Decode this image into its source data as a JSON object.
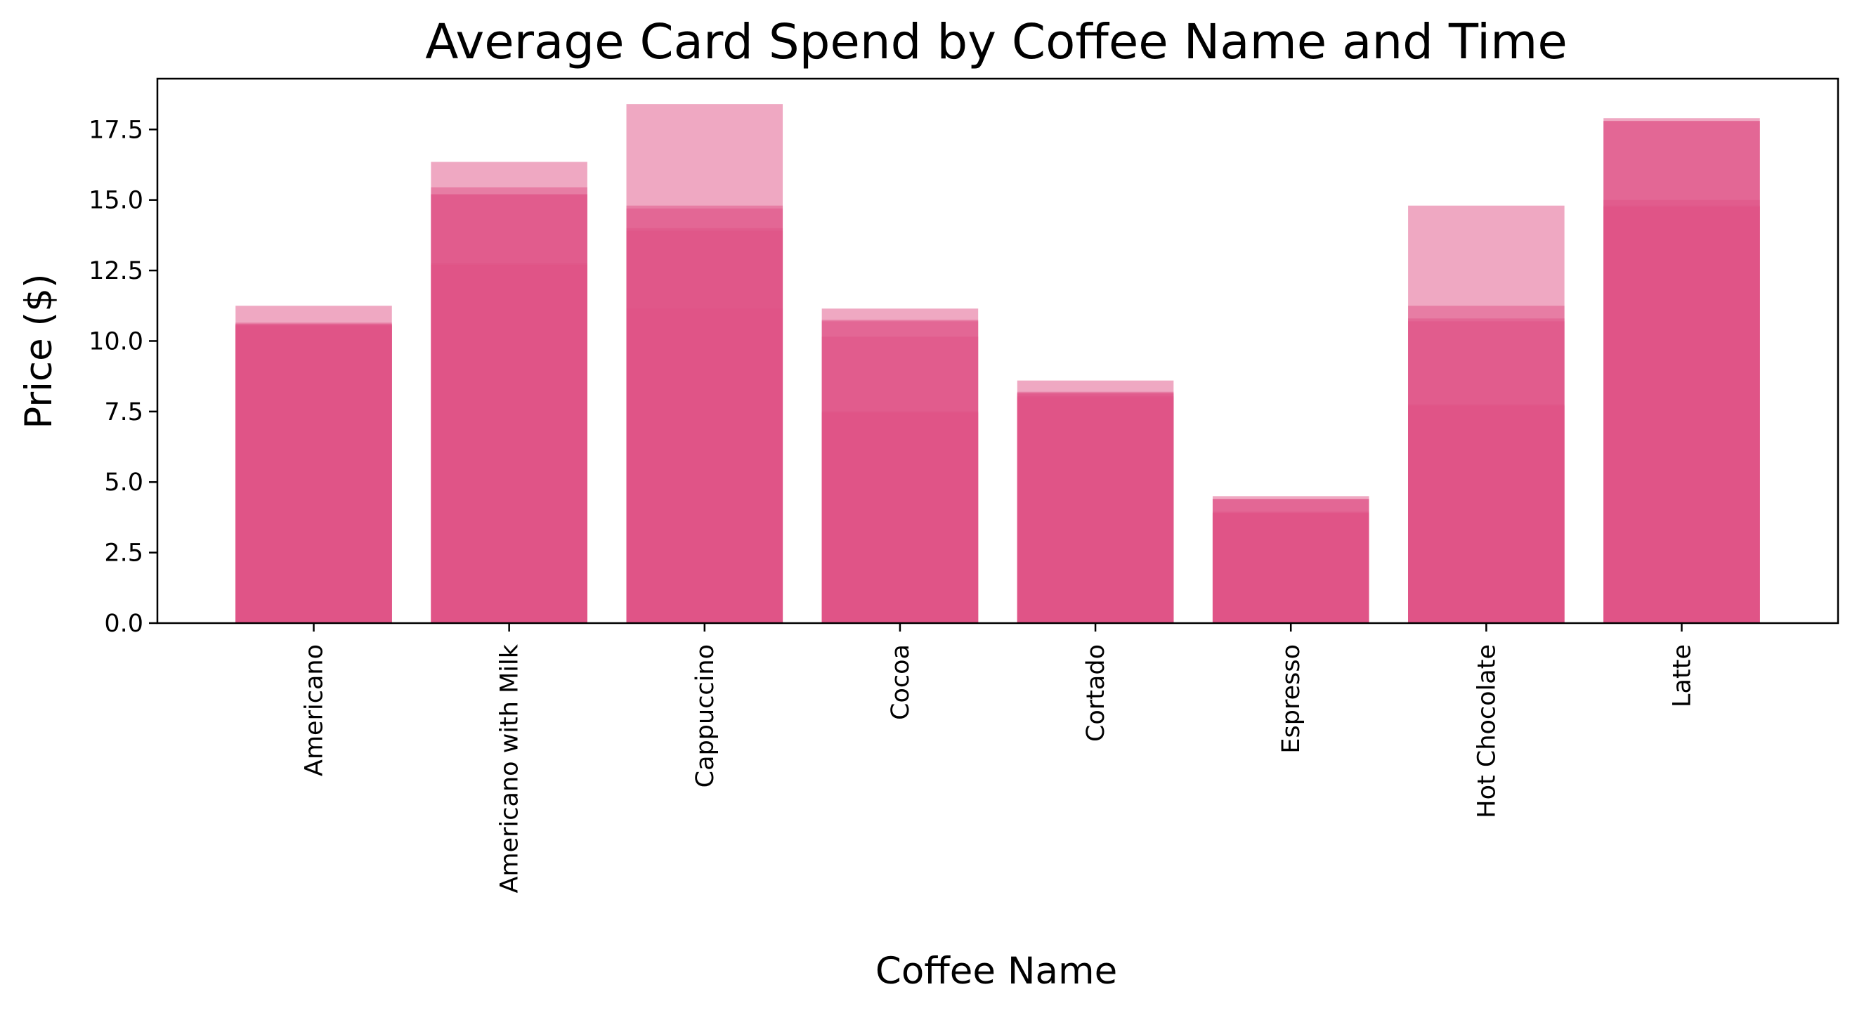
{
  "chart_data": {
    "type": "bar",
    "title": "Average Card Spend by Coffee Name and Time",
    "xlabel": "Coffee Name",
    "ylabel": "Price ($)",
    "ylim": [
      0,
      19.3
    ],
    "yticks": [
      "0.0",
      "2.5",
      "5.0",
      "7.5",
      "10.0",
      "12.5",
      "15.0",
      "17.5"
    ],
    "categories": [
      "Americano",
      "Americano with Milk",
      "Cappuccino",
      "Cocoa",
      "Cortado",
      "Espresso",
      "Hot Chocolate",
      "Latte"
    ],
    "bar_color": "#e05286",
    "bar_opacity": 0.5,
    "grid": false,
    "legend": "none",
    "overlays": [
      {
        "values": [
          11.25,
          16.35,
          18.4,
          11.15,
          8.6,
          4.5,
          14.8,
          17.9
        ]
      },
      {
        "values": [
          10.65,
          15.45,
          14.8,
          10.75,
          8.2,
          4.4,
          11.25,
          17.8
        ]
      },
      {
        "values": [
          10.6,
          15.2,
          14.7,
          10.7,
          8.15,
          4.4,
          10.8,
          17.8
        ]
      },
      {
        "values": [
          10.6,
          15.2,
          14.0,
          10.15,
          8.15,
          3.95,
          10.7,
          15.0
        ]
      },
      {
        "values": [
          10.55,
          12.75,
          13.9,
          7.5,
          8.05,
          3.9,
          7.75,
          14.8
        ]
      },
      {
        "values": [
          10.55,
          12.7,
          11.15,
          7.45,
          8.0,
          3.9,
          7.7,
          14.75
        ]
      }
    ]
  }
}
